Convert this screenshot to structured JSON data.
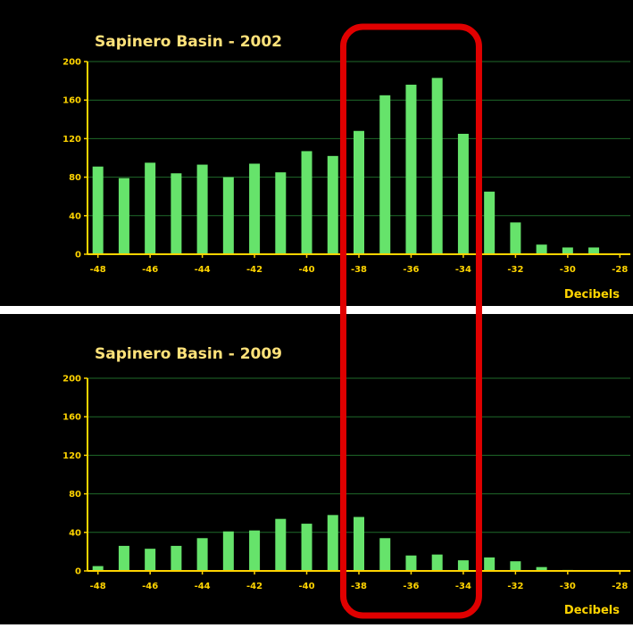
{
  "colors": {
    "background": "#000000",
    "bar": "#66e36b",
    "axis": "#ffd400",
    "grid": "#1f6a2a",
    "title": "#ffe27a",
    "highlight": "#e00000"
  },
  "chart_data": [
    {
      "type": "bar",
      "title": "Sapinero Basin - 2002",
      "xlabel": "Decibels",
      "ylabel": "",
      "ylim": [
        0,
        200
      ],
      "yticks": [
        0,
        40,
        80,
        120,
        160,
        200
      ],
      "xticks": [
        -48,
        -46,
        -44,
        -42,
        -40,
        -38,
        -36,
        -34,
        -32,
        -30,
        -28
      ],
      "grid": true,
      "x": [
        -48,
        -47,
        -46,
        -45,
        -44,
        -43,
        -42,
        -41,
        -40,
        -39,
        -38,
        -37,
        -36,
        -35,
        -34,
        -33,
        -32,
        -31,
        -30,
        -29
      ],
      "values": [
        91,
        79,
        95,
        84,
        93,
        80,
        94,
        85,
        107,
        102,
        128,
        165,
        176,
        183,
        125,
        65,
        33,
        10,
        7,
        7
      ]
    },
    {
      "type": "bar",
      "title": "Sapinero Basin - 2009",
      "xlabel": "Decibels",
      "ylabel": "",
      "ylim": [
        0,
        200
      ],
      "yticks": [
        0,
        40,
        80,
        120,
        160,
        200
      ],
      "xticks": [
        -48,
        -46,
        -44,
        -42,
        -40,
        -38,
        -36,
        -34,
        -32,
        -30,
        -28
      ],
      "grid": true,
      "x": [
        -48,
        -47,
        -46,
        -45,
        -44,
        -43,
        -42,
        -41,
        -40,
        -39,
        -38,
        -37,
        -36,
        -35,
        -34,
        -33,
        -32,
        -31,
        -30,
        -29
      ],
      "values": [
        5,
        26,
        23,
        26,
        34,
        41,
        42,
        54,
        49,
        58,
        56,
        34,
        16,
        17,
        11,
        14,
        10,
        4,
        1,
        0
      ]
    }
  ],
  "highlight": {
    "x_range": [
      -38.6,
      -33.4
    ],
    "label": ""
  }
}
